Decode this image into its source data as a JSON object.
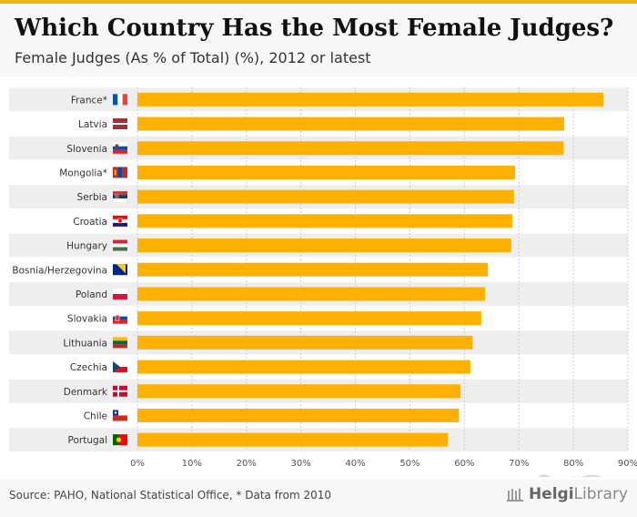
{
  "header": {
    "title": "Which Country Has the Most Female Judges?",
    "subtitle": "Female Judges (As % of Total) (%), 2012 or latest"
  },
  "footer": {
    "source": "Source: PAHO, National Statistical Office, * Data from 2010",
    "brand_part1": "Helgi",
    "brand_part2": "Library"
  },
  "colors": {
    "bar": "#ffb000",
    "row_bg": "#eeeeee",
    "grid": "#cccccc",
    "accent": "#f0b316"
  },
  "chart_data": {
    "type": "bar",
    "orientation": "horizontal",
    "title": "Which Country Has the Most Female Judges?",
    "ylabel": "Female Judges (As % of Total) (%)",
    "categories": [
      "France*",
      "Latvia",
      "Slovenia",
      "Mongolia*",
      "Serbia",
      "Croatia",
      "Hungary",
      "Bosnia/Herzegovina",
      "Poland",
      "Slovakia",
      "Lithuania",
      "Czechia",
      "Denmark",
      "Chile",
      "Portugal"
    ],
    "values": [
      85.5,
      78.3,
      78.2,
      69.3,
      69.1,
      68.8,
      68.6,
      64.3,
      63.8,
      63.1,
      61.5,
      61.1,
      59.3,
      59.0,
      57.0
    ],
    "flags": [
      "france-flag",
      "latvia-flag",
      "slovenia-flag",
      "mongolia-flag",
      "serbia-flag",
      "croatia-flag",
      "hungary-flag",
      "bosnia-flag",
      "poland-flag",
      "slovakia-flag",
      "lithuania-flag",
      "czechia-flag",
      "denmark-flag",
      "chile-flag",
      "portugal-flag"
    ],
    "xlim": [
      0,
      90
    ],
    "ticks": [
      "0%",
      "10%",
      "20%",
      "30%",
      "40%",
      "50%",
      "60%",
      "70%",
      "80%",
      "90%"
    ],
    "grid": true
  }
}
